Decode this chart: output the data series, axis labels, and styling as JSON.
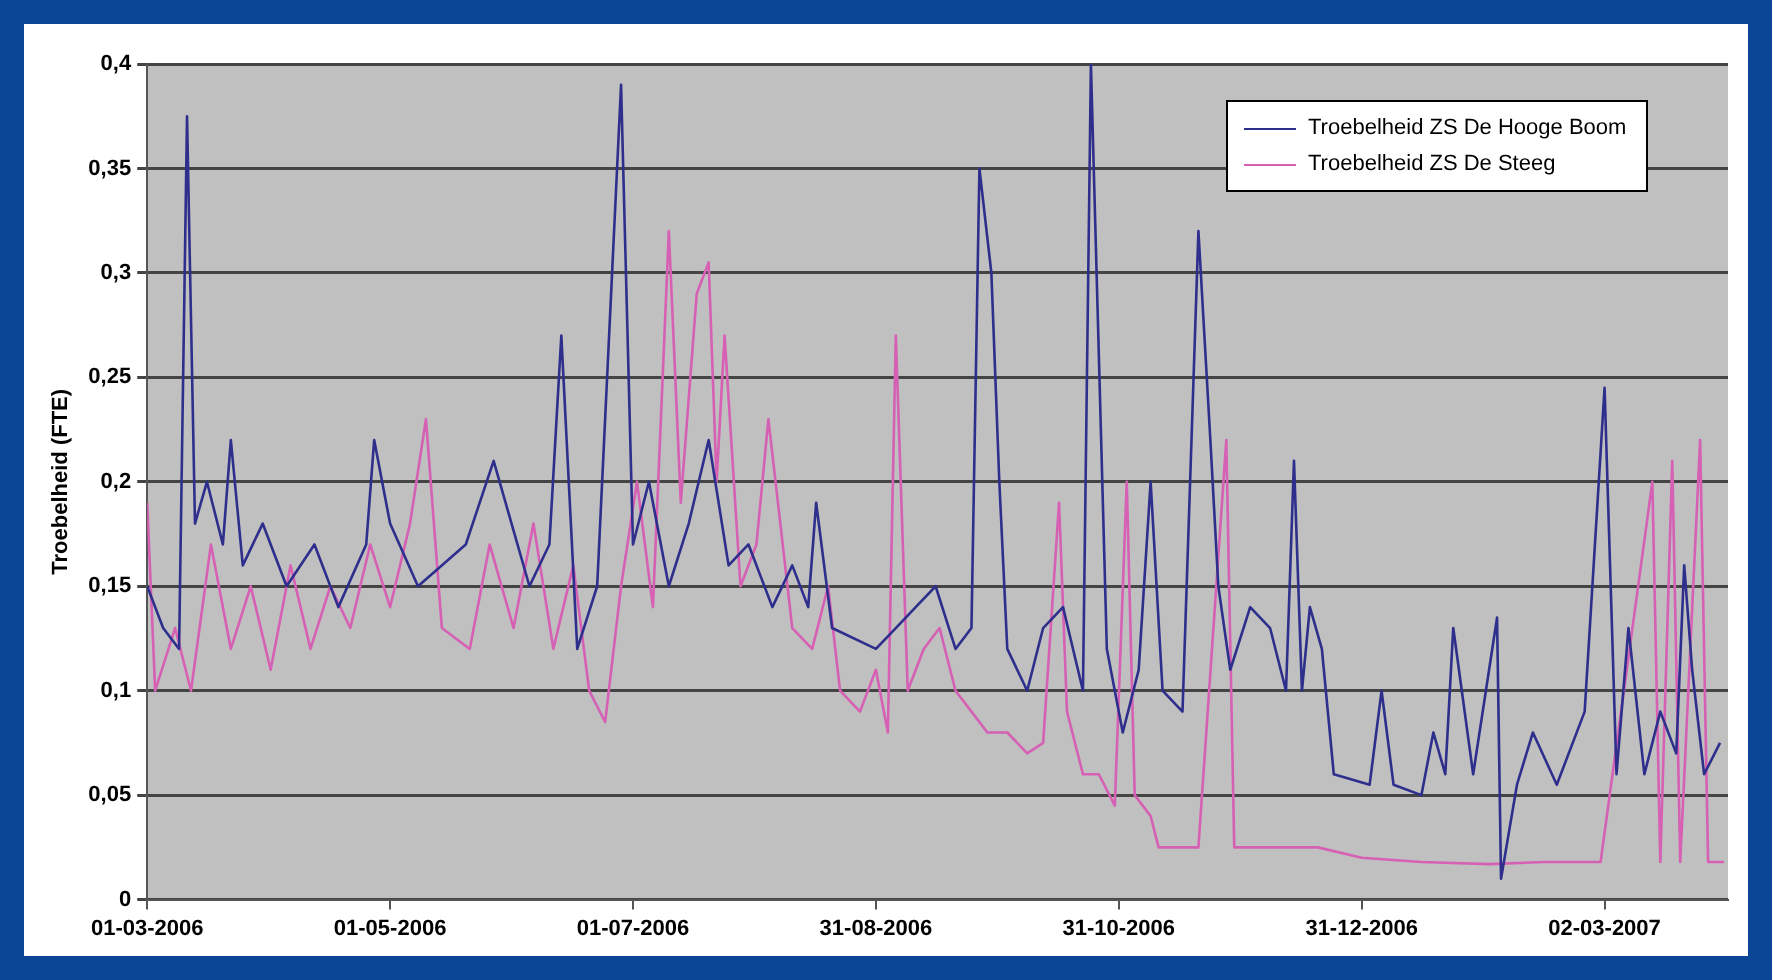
{
  "chart_data": {
    "type": "line",
    "ylabel": "Troebelheid (FTE)",
    "xlim": [
      "2006-03-01",
      "2007-04-02"
    ],
    "ylim": [
      0,
      0.4
    ],
    "yticks": [
      0,
      {
        "value": 0.05,
        "label": "0,05"
      },
      {
        "value": 0.1,
        "label": "0,1"
      },
      {
        "value": 0.15,
        "label": "0,15"
      },
      {
        "value": 0.2,
        "label": "0,2"
      },
      {
        "value": 0.25,
        "label": "0,25"
      },
      {
        "value": 0.3,
        "label": "0,3"
      },
      {
        "value": 0.35,
        "label": "0,35"
      },
      {
        "value": 0.4,
        "label": "0,4"
      }
    ],
    "xticks": [
      {
        "value": "2006-03-01",
        "label": "01-03-2006"
      },
      {
        "value": "2006-05-01",
        "label": "01-05-2006"
      },
      {
        "value": "2006-07-01",
        "label": "01-07-2006"
      },
      {
        "value": "2006-08-31",
        "label": "31-08-2006"
      },
      {
        "value": "2006-10-31",
        "label": "31-10-2006"
      },
      {
        "value": "2006-12-31",
        "label": "31-12-2006"
      },
      {
        "value": "2007-03-02",
        "label": "02-03-2007"
      }
    ],
    "grid": "y",
    "legend": "top right",
    "marker": "none",
    "line_style": "solid",
    "series": [
      {
        "name": "Troebelheid ZS De Hooge Boom",
        "color": "#2e2e8c",
        "x": [
          "2006-03-01",
          "2006-03-05",
          "2006-03-09",
          "2006-03-11",
          "2006-03-13",
          "2006-03-16",
          "2006-03-20",
          "2006-03-22",
          "2006-03-25",
          "2006-03-30",
          "2006-04-05",
          "2006-04-12",
          "2006-04-18",
          "2006-04-25",
          "2006-04-27",
          "2006-05-01",
          "2006-05-08",
          "2006-05-20",
          "2006-05-27",
          "2006-06-05",
          "2006-06-10",
          "2006-06-13",
          "2006-06-17",
          "2006-06-22",
          "2006-06-28",
          "2006-07-01",
          "2006-07-05",
          "2006-07-10",
          "2006-07-15",
          "2006-07-20",
          "2006-07-25",
          "2006-07-30",
          "2006-08-05",
          "2006-08-10",
          "2006-08-14",
          "2006-08-16",
          "2006-08-20",
          "2006-08-31",
          "2006-09-05",
          "2006-09-10",
          "2006-09-15",
          "2006-09-20",
          "2006-09-24",
          "2006-09-26",
          "2006-09-29",
          "2006-10-01",
          "2006-10-03",
          "2006-10-08",
          "2006-10-12",
          "2006-10-17",
          "2006-10-22",
          "2006-10-24",
          "2006-10-28",
          "2006-11-01",
          "2006-11-05",
          "2006-11-08",
          "2006-11-11",
          "2006-11-16",
          "2006-11-20",
          "2006-11-23",
          "2006-11-25",
          "2006-11-28",
          "2006-12-03",
          "2006-12-08",
          "2006-12-12",
          "2006-12-14",
          "2006-12-16",
          "2006-12-18",
          "2006-12-21",
          "2006-12-24",
          "2007-01-02",
          "2007-01-05",
          "2007-01-08",
          "2007-01-15",
          "2007-01-18",
          "2007-01-21",
          "2007-01-23",
          "2007-01-28",
          "2007-02-01",
          "2007-02-03",
          "2007-02-04",
          "2007-02-08",
          "2007-02-12",
          "2007-02-18",
          "2007-02-25",
          "2007-03-02",
          "2007-03-05",
          "2007-03-08",
          "2007-03-12",
          "2007-03-16",
          "2007-03-20",
          "2007-03-22",
          "2007-03-24",
          "2007-03-27",
          "2007-03-31"
        ],
        "values": [
          0.15,
          0.13,
          0.12,
          0.375,
          0.18,
          0.2,
          0.17,
          0.22,
          0.16,
          0.18,
          0.15,
          0.17,
          0.14,
          0.17,
          0.22,
          0.18,
          0.15,
          0.17,
          0.21,
          0.15,
          0.17,
          0.27,
          0.12,
          0.15,
          0.39,
          0.17,
          0.2,
          0.15,
          0.18,
          0.22,
          0.16,
          0.17,
          0.14,
          0.16,
          0.14,
          0.19,
          0.13,
          0.12,
          0.13,
          0.14,
          0.15,
          0.12,
          0.13,
          0.35,
          0.3,
          0.2,
          0.12,
          0.1,
          0.13,
          0.14,
          0.1,
          0.4,
          0.12,
          0.08,
          0.11,
          0.2,
          0.1,
          0.09,
          0.32,
          0.22,
          0.15,
          0.11,
          0.14,
          0.13,
          0.1,
          0.21,
          0.1,
          0.14,
          0.12,
          0.06,
          0.055,
          0.1,
          0.055,
          0.05,
          0.08,
          0.06,
          0.13,
          0.06,
          0.11,
          0.135,
          0.01,
          0.055,
          0.08,
          0.055,
          0.09,
          0.245,
          0.06,
          0.13,
          0.06,
          0.09,
          0.07,
          0.16,
          0.11,
          0.06,
          0.075
        ]
      },
      {
        "name": "Troebelheid ZS De Steeg",
        "color": "#d660b4",
        "x": [
          "2006-03-01",
          "2006-03-03",
          "2006-03-08",
          "2006-03-12",
          "2006-03-17",
          "2006-03-22",
          "2006-03-27",
          "2006-04-01",
          "2006-04-06",
          "2006-04-11",
          "2006-04-16",
          "2006-04-21",
          "2006-04-26",
          "2006-05-01",
          "2006-05-06",
          "2006-05-10",
          "2006-05-14",
          "2006-05-21",
          "2006-05-26",
          "2006-06-01",
          "2006-06-06",
          "2006-06-11",
          "2006-06-16",
          "2006-06-20",
          "2006-06-24",
          "2006-06-28",
          "2006-07-02",
          "2006-07-06",
          "2006-07-10",
          "2006-07-13",
          "2006-07-17",
          "2006-07-20",
          "2006-07-22",
          "2006-07-24",
          "2006-07-28",
          "2006-08-01",
          "2006-08-04",
          "2006-08-10",
          "2006-08-15",
          "2006-08-19",
          "2006-08-22",
          "2006-08-27",
          "2006-08-31",
          "2006-09-03",
          "2006-09-05",
          "2006-09-08",
          "2006-09-12",
          "2006-09-16",
          "2006-09-20",
          "2006-09-24",
          "2006-09-28",
          "2006-10-03",
          "2006-10-08",
          "2006-10-12",
          "2006-10-16",
          "2006-10-18",
          "2006-10-22",
          "2006-10-26",
          "2006-10-30",
          "2006-11-02",
          "2006-11-04",
          "2006-11-08",
          "2006-11-10",
          "2006-11-20",
          "2006-11-27",
          "2006-11-29",
          "2006-12-10",
          "2006-12-20",
          "2006-12-31",
          "2007-01-15",
          "2007-02-01",
          "2007-02-15",
          "2007-03-01",
          "2007-03-14",
          "2007-03-16",
          "2007-03-19",
          "2007-03-21",
          "2007-03-26",
          "2007-03-28",
          "2007-04-01"
        ],
        "values": [
          0.19,
          0.1,
          0.13,
          0.1,
          0.17,
          0.12,
          0.15,
          0.11,
          0.16,
          0.12,
          0.15,
          0.13,
          0.17,
          0.14,
          0.18,
          0.23,
          0.13,
          0.12,
          0.17,
          0.13,
          0.18,
          0.12,
          0.16,
          0.1,
          0.085,
          0.15,
          0.2,
          0.14,
          0.32,
          0.19,
          0.29,
          0.305,
          0.2,
          0.27,
          0.15,
          0.17,
          0.23,
          0.13,
          0.12,
          0.15,
          0.1,
          0.09,
          0.11,
          0.08,
          0.27,
          0.1,
          0.12,
          0.13,
          0.1,
          0.09,
          0.08,
          0.08,
          0.07,
          0.075,
          0.19,
          0.09,
          0.06,
          0.06,
          0.045,
          0.2,
          0.05,
          0.04,
          0.025,
          0.025,
          0.22,
          0.025,
          0.025,
          0.025,
          0.02,
          0.018,
          0.017,
          0.018,
          0.018,
          0.2,
          0.018,
          0.21,
          0.018,
          0.22,
          0.018,
          0.018
        ]
      }
    ]
  }
}
